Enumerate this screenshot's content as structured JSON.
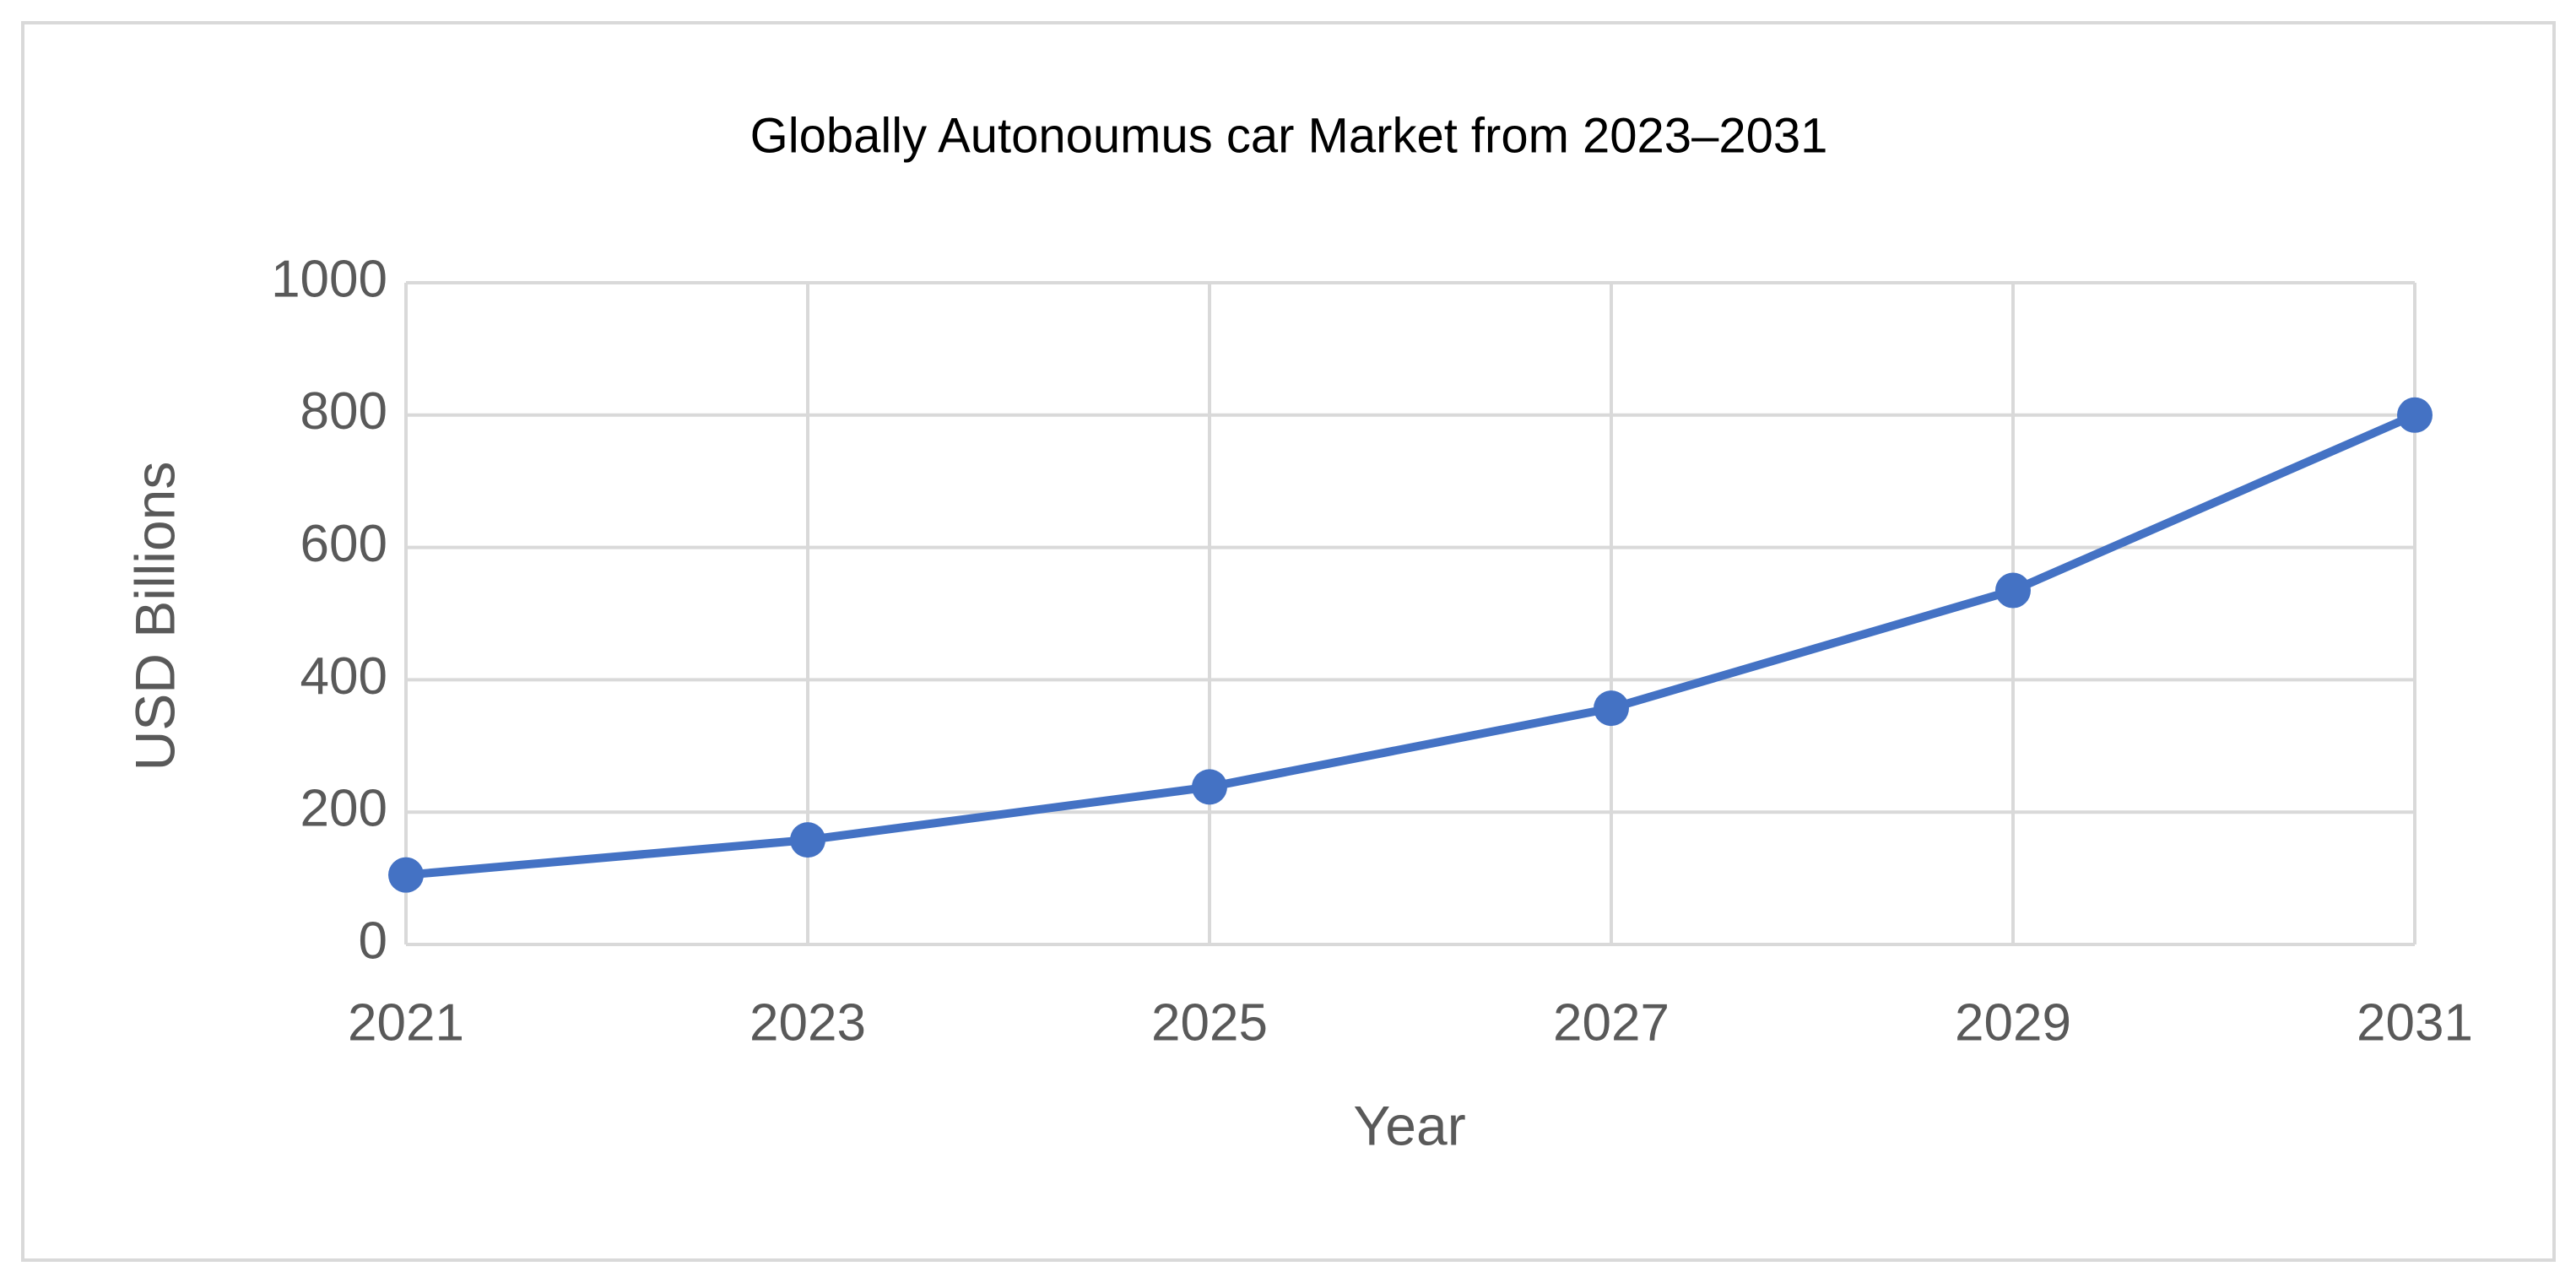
{
  "chart_data": {
    "type": "line",
    "title": "Globally Autonoumus car Market from 2023–2031",
    "x_label": "Year",
    "y_label": "USD Billions",
    "categories": [
      "2021",
      "2023",
      "2025",
      "2027",
      "2029",
      "2031"
    ],
    "values": [
      105,
      158,
      238,
      357,
      535,
      800
    ],
    "color": "#4472c4",
    "ylim": [
      0,
      1000
    ],
    "yticks": [
      0,
      200,
      400,
      600,
      800,
      1000
    ],
    "grid": true
  }
}
